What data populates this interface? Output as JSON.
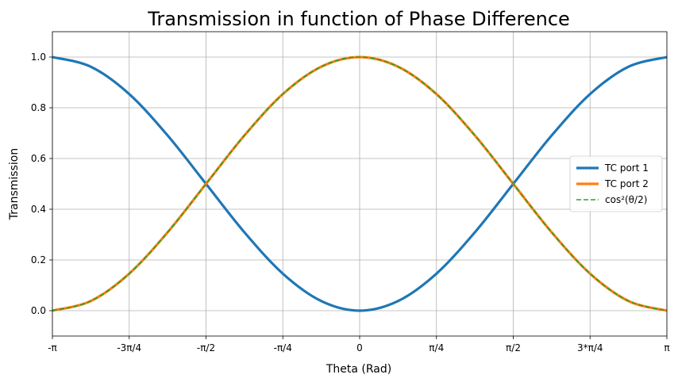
{
  "chart_data": {
    "type": "line",
    "title": "Transmission in function of Phase Difference",
    "xlabel": "Theta (Rad)",
    "ylabel": "Transmission",
    "xlim": [
      -3.14159265,
      3.14159265
    ],
    "ylim": [
      -0.1,
      1.1
    ],
    "grid": true,
    "legend_position": "center-right",
    "x_ticks": [
      {
        "value": -3.14159265,
        "label": "-π"
      },
      {
        "value": -2.35619449,
        "label": "-3π/4"
      },
      {
        "value": -1.57079633,
        "label": "-π/2"
      },
      {
        "value": -0.78539816,
        "label": "-π/4"
      },
      {
        "value": 0,
        "label": "0"
      },
      {
        "value": 0.78539816,
        "label": "π/4"
      },
      {
        "value": 1.57079633,
        "label": "π/2"
      },
      {
        "value": 2.35619449,
        "label": "3*π/4"
      },
      {
        "value": 3.14159265,
        "label": "π"
      }
    ],
    "y_ticks": [
      {
        "value": 0.0,
        "label": "0.0"
      },
      {
        "value": 0.2,
        "label": "0.2"
      },
      {
        "value": 0.4,
        "label": "0.4"
      },
      {
        "value": 0.6,
        "label": "0.6"
      },
      {
        "value": 0.8,
        "label": "0.8"
      },
      {
        "value": 1.0,
        "label": "1.0"
      }
    ],
    "x": [
      -3.14159265,
      -2.74889357,
      -2.35619449,
      -1.96349541,
      -1.57079633,
      -1.17809725,
      -0.78539816,
      -0.39269908,
      0,
      0.39269908,
      0.78539816,
      1.17809725,
      1.57079633,
      1.96349541,
      2.35619449,
      2.74889357,
      3.14159265
    ],
    "series": [
      {
        "name": "TC port 1",
        "color": "#1f77b4",
        "style": "solid",
        "values": [
          1.0,
          0.962,
          0.854,
          0.691,
          0.5,
          0.309,
          0.146,
          0.038,
          0.0,
          0.038,
          0.146,
          0.309,
          0.5,
          0.691,
          0.854,
          0.962,
          1.0
        ]
      },
      {
        "name": "TC port 2",
        "color": "#ff7f0e",
        "style": "solid",
        "values": [
          0.0,
          0.038,
          0.146,
          0.309,
          0.5,
          0.691,
          0.854,
          0.962,
          1.0,
          0.962,
          0.854,
          0.691,
          0.5,
          0.309,
          0.146,
          0.038,
          0.0
        ]
      },
      {
        "name": "cos²(θ/2)",
        "color": "#2ca02c",
        "style": "dashed",
        "values": [
          0.0,
          0.038,
          0.146,
          0.309,
          0.5,
          0.691,
          0.854,
          0.962,
          1.0,
          0.962,
          0.854,
          0.691,
          0.5,
          0.309,
          0.146,
          0.038,
          0.0
        ]
      }
    ]
  }
}
